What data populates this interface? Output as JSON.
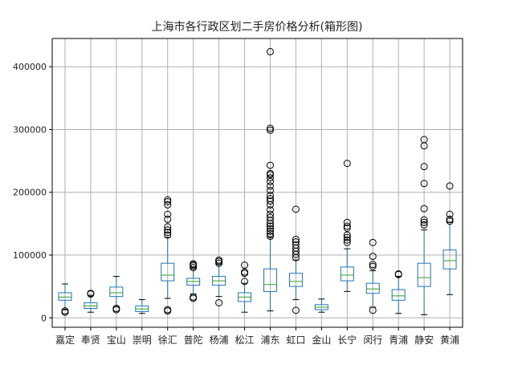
{
  "chart_data": {
    "type": "box",
    "title": "上海市各行政区划二手房价格分析(箱形图)",
    "xlabel": "",
    "ylabel": "",
    "ylim": [
      -15000,
      445000
    ],
    "yticks": [
      0,
      100000,
      200000,
      300000,
      400000
    ],
    "ytick_labels": [
      "0",
      "100000",
      "200000",
      "300000",
      "400000"
    ],
    "grid": true,
    "colors": {
      "box": "#1f77b4",
      "median": "#2ca02c",
      "flier": "#000000",
      "grid": "#b0b0b0"
    },
    "categories": [
      "嘉定",
      "奉贤",
      "宝山",
      "崇明",
      "徐汇",
      "普陀",
      "杨浦",
      "松江",
      "浦东",
      "虹口",
      "金山",
      "长宁",
      "闵行",
      "青浦",
      "静安",
      "黄浦"
    ],
    "boxes": [
      {
        "whisker_low": 13000,
        "q1": 28000,
        "median": 33000,
        "q3": 40000,
        "whisker_high": 54000,
        "fliers": [
          9000,
          11000
        ]
      },
      {
        "whisker_low": 9000,
        "q1": 15000,
        "median": 19000,
        "q3": 24000,
        "whisker_high": 36000,
        "fliers": [
          38000,
          39000
        ]
      },
      {
        "whisker_low": 18000,
        "q1": 34000,
        "median": 40000,
        "q3": 49000,
        "whisker_high": 66000,
        "fliers": [
          13000,
          15000
        ]
      },
      {
        "whisker_low": 7000,
        "q1": 10000,
        "median": 14000,
        "q3": 19000,
        "whisker_high": 29000,
        "fliers": []
      },
      {
        "whisker_low": 31000,
        "q1": 59000,
        "median": 68000,
        "q3": 87000,
        "whisker_high": 128000,
        "fliers": [
          11000,
          13000,
          132000,
          136000,
          140000,
          145000,
          157000,
          165000,
          180000,
          185000,
          188000
        ]
      },
      {
        "whisker_low": 38000,
        "q1": 52000,
        "median": 58000,
        "q3": 63000,
        "whisker_high": 78000,
        "fliers": [
          31000,
          33000,
          80000,
          83000,
          85000,
          86000
        ]
      },
      {
        "whisker_low": 34000,
        "q1": 52000,
        "median": 59000,
        "q3": 66000,
        "whisker_high": 85000,
        "fliers": [
          24000,
          87000,
          90000,
          92000
        ]
      },
      {
        "whisker_low": 9000,
        "q1": 26000,
        "median": 33000,
        "q3": 40000,
        "whisker_high": 55000,
        "fliers": [
          58000,
          71000,
          73000,
          84000
        ]
      },
      {
        "whisker_low": 11000,
        "q1": 42000,
        "median": 53000,
        "q3": 78000,
        "whisker_high": 128000,
        "fliers": [
          130000,
          134000,
          138000,
          142000,
          146000,
          150000,
          155000,
          160000,
          165000,
          172000,
          180000,
          186000,
          190000,
          195000,
          203000,
          210000,
          217000,
          223000,
          228000,
          230000,
          243000,
          299000,
          302000,
          424000
        ]
      },
      {
        "whisker_low": 29000,
        "q1": 50000,
        "median": 58000,
        "q3": 71000,
        "whisker_high": 92000,
        "fliers": [
          12000,
          96000,
          101000,
          106000,
          111000,
          116000,
          121000,
          125000,
          173000
        ]
      },
      {
        "whisker_low": 9000,
        "q1": 13000,
        "median": 17000,
        "q3": 21000,
        "whisker_high": 30000,
        "fliers": []
      },
      {
        "whisker_low": 42000,
        "q1": 59000,
        "median": 68000,
        "q3": 81000,
        "whisker_high": 110000,
        "fliers": [
          120000,
          124000,
          128000,
          132000,
          143000,
          146000,
          152000,
          246000
        ]
      },
      {
        "whisker_low": 17000,
        "q1": 39000,
        "median": 46000,
        "q3": 55000,
        "whisker_high": 75000,
        "fliers": [
          12000,
          82000,
          85000,
          98000,
          120000
        ]
      },
      {
        "whisker_low": 7000,
        "q1": 28000,
        "median": 35000,
        "q3": 45000,
        "whisker_high": 66000,
        "fliers": [
          69000,
          70000
        ]
      },
      {
        "whisker_low": 5000,
        "q1": 50000,
        "median": 64000,
        "q3": 87000,
        "whisker_high": 140000,
        "fliers": [
          148000,
          152000,
          156000,
          174000,
          214000,
          241000,
          274000,
          284000
        ]
      },
      {
        "whisker_low": 37000,
        "q1": 78000,
        "median": 91000,
        "q3": 108000,
        "whisker_high": 152000,
        "fliers": [
          154000,
          157000,
          165000,
          210000
        ]
      }
    ]
  }
}
